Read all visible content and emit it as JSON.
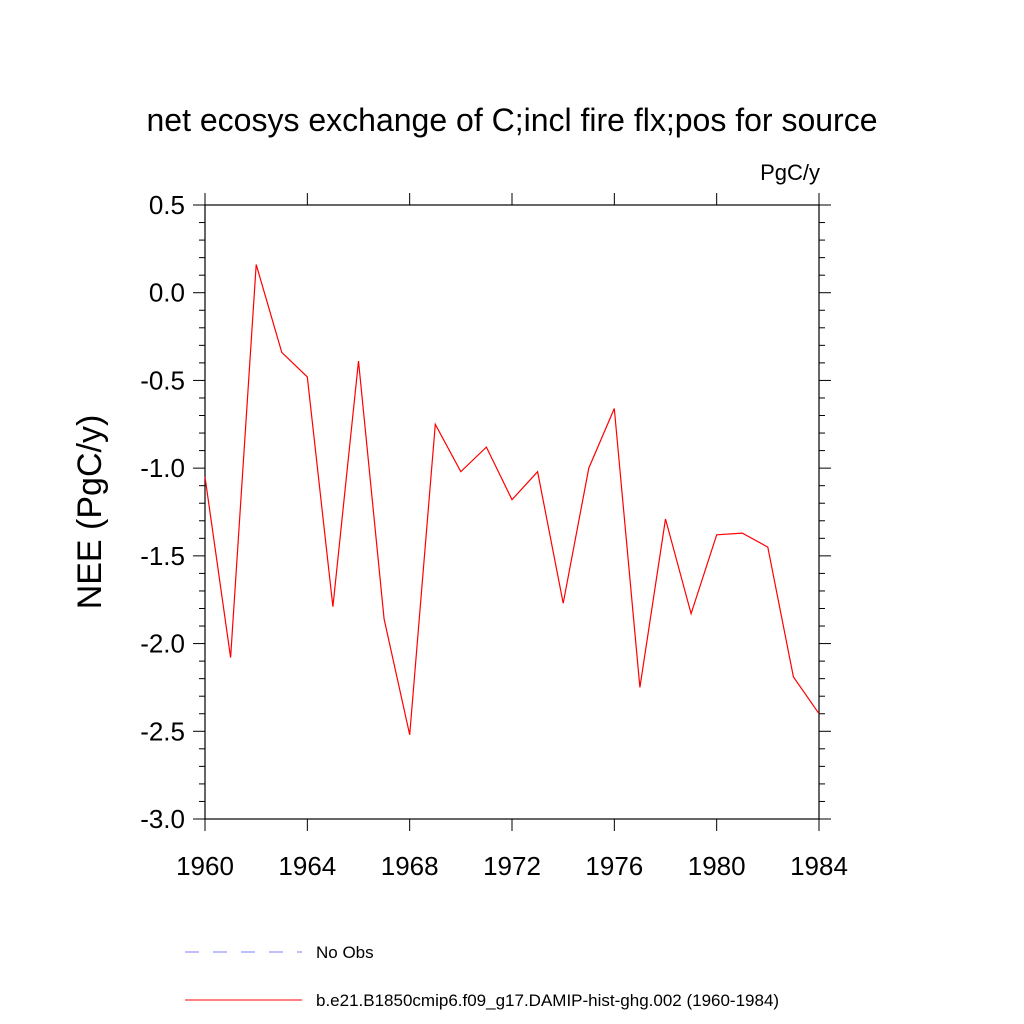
{
  "chart_data": {
    "type": "line",
    "title": "net ecosys exchange of C;incl fire flx;pos for source",
    "units": "PgC/y",
    "ylabel": "NEE  (PgC/y)",
    "xlabel": "",
    "xlim": [
      1960,
      1984
    ],
    "ylim": [
      -3.0,
      0.5
    ],
    "x_ticks": [
      1960,
      1964,
      1968,
      1972,
      1976,
      1980,
      1984
    ],
    "x_tick_labels": [
      "1960",
      "1964",
      "1968",
      "1972",
      "1976",
      "1980",
      "1984"
    ],
    "y_ticks": [
      0.5,
      0.0,
      -0.5,
      -1.0,
      -1.5,
      -2.0,
      -2.5,
      -3.0
    ],
    "y_tick_labels": [
      "0.5",
      "0.0",
      "-0.5",
      "-1.0",
      "-1.5",
      "-2.0",
      "-2.5",
      "-3.0"
    ],
    "grid": false,
    "legend_placement": "bottom",
    "series": [
      {
        "name": "b.e21.B1850cmip6.f09_g17.DAMIP-hist-ghg.002 (1960-1984)",
        "color": "#ff0000",
        "style": "solid",
        "x": [
          1960,
          1961,
          1962,
          1963,
          1964,
          1965,
          1966,
          1967,
          1968,
          1969,
          1970,
          1971,
          1972,
          1973,
          1974,
          1975,
          1976,
          1977,
          1978,
          1979,
          1980,
          1981,
          1982,
          1983,
          1984
        ],
        "y": [
          -1.05,
          -2.08,
          0.16,
          -0.34,
          -0.48,
          -1.79,
          -0.39,
          -1.86,
          -2.52,
          -0.75,
          -1.02,
          -0.88,
          -1.18,
          -1.02,
          -1.77,
          -1.0,
          -0.66,
          -2.25,
          -1.29,
          -1.83,
          -1.38,
          -1.37,
          -1.45,
          -2.19,
          -2.4
        ]
      }
    ],
    "legend": [
      {
        "label": "No Obs",
        "color": "#8080ff",
        "style": "dashed"
      },
      {
        "label": "b.e21.B1850cmip6.f09_g17.DAMIP-hist-ghg.002 (1960-1984)",
        "color": "#ff0000",
        "style": "solid"
      }
    ]
  }
}
